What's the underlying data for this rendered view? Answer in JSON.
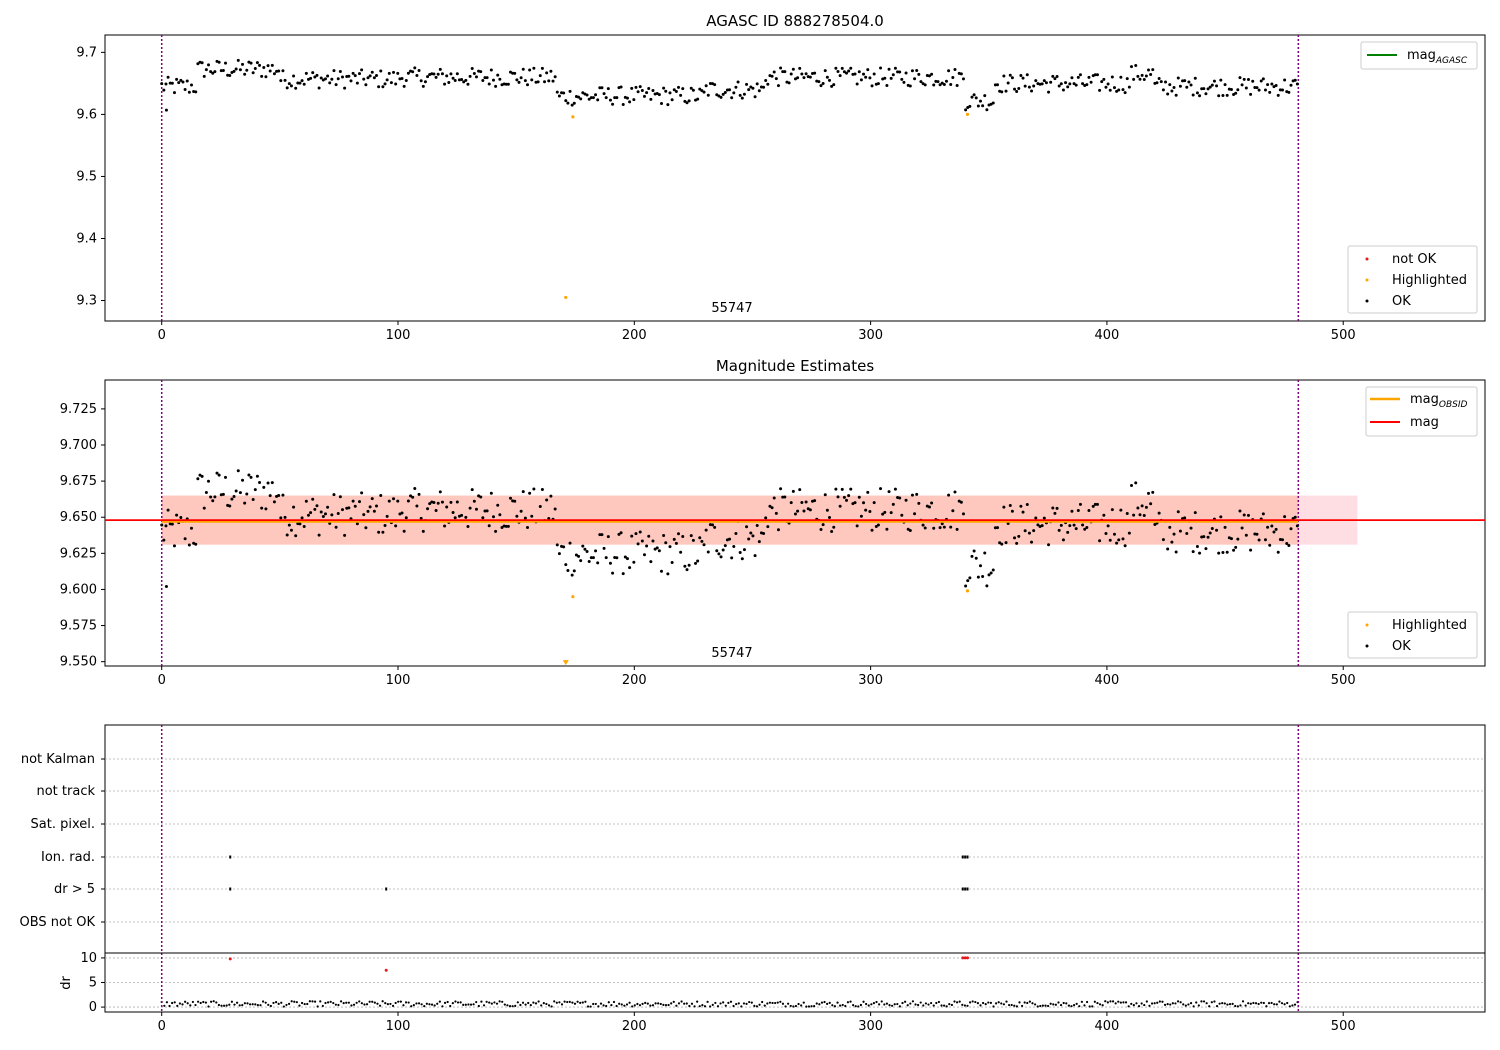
{
  "colors": {
    "ok": "#000000",
    "not_ok": "#e41a1c",
    "highlighted": "#ffa500",
    "agasc_line": "#008000",
    "mag_line": "#ff0000",
    "obsid_line": "#ffa500",
    "band_fill": "#ffb6c1",
    "band_obsid_fill": "#ffa07a",
    "obs_boundary": "#800080",
    "grid": "#b0b0b0"
  },
  "panel1": {
    "title": "AGASC ID 888278504.0",
    "obsid_label": "55747",
    "legend_top": {
      "mag_agasc": "mag",
      "mag_agasc_sub": "AGASC"
    },
    "legend_bottom": {
      "not_ok": "not OK",
      "highlighted": "Highlighted",
      "ok": "OK"
    }
  },
  "panel2": {
    "title": "Magnitude Estimates",
    "obsid_label": "55747",
    "legend_top": {
      "mag_obsid": "mag",
      "mag_obsid_sub": "OBSID",
      "mag": "mag"
    },
    "legend_bottom": {
      "highlighted": "Highlighted",
      "ok": "OK"
    }
  },
  "panel3": {
    "flag_labels": [
      "not Kalman",
      "not track",
      "Sat. pixel.",
      "Ion. rad.",
      "dr > 5",
      "OBS not OK"
    ],
    "dr_ylabel": "dr"
  },
  "chart_data": [
    {
      "type": "scatter",
      "title": "AGASC ID 888278504.0",
      "xlim": [
        -24,
        560
      ],
      "ylim": [
        9.267,
        9.728
      ],
      "xticks": [
        0,
        100,
        200,
        300,
        400,
        500
      ],
      "yticks": [
        9.3,
        9.4,
        9.5,
        9.6,
        9.7
      ],
      "obs_boundaries": [
        0,
        481
      ],
      "annotation": {
        "text": "55747",
        "x": 241
      },
      "series": [
        {
          "name": "OK",
          "profile": "main"
        },
        {
          "name": "Highlighted",
          "points": [
            [
              171,
              9.305
            ],
            [
              174,
              9.596
            ],
            [
              341,
              9.6
            ]
          ]
        },
        {
          "name": "not OK",
          "points": []
        }
      ],
      "lines": [
        {
          "name": "mag_AGASC"
        }
      ],
      "legend_top": "top-right",
      "legend_bottom": "bottom-right"
    },
    {
      "type": "scatter",
      "title": "Magnitude Estimates",
      "xlim": [
        -24,
        560
      ],
      "ylim": [
        9.547,
        9.745
      ],
      "xticks": [
        0,
        100,
        200,
        300,
        400,
        500
      ],
      "yticks": [
        9.55,
        9.575,
        9.6,
        9.625,
        9.65,
        9.675,
        9.7,
        9.725
      ],
      "obs_boundaries": [
        0,
        481
      ],
      "annotation": {
        "text": "55747",
        "x": 241
      },
      "mag": 9.648,
      "band": [
        9.631,
        9.665
      ],
      "band_xrange": [
        0,
        506
      ],
      "mag_obsid": 9.647,
      "series": [
        {
          "name": "OK",
          "profile": "main"
        },
        {
          "name": "Highlighted",
          "points": [
            [
              171,
              9.549
            ],
            [
              174,
              9.595
            ],
            [
              341,
              9.599
            ]
          ]
        }
      ],
      "legend_top": "top-right",
      "legend_bottom": "bottom-right"
    },
    {
      "type": "scatter",
      "xlim": [
        -24,
        560
      ],
      "xticks": [
        0,
        100,
        200,
        300,
        400,
        500
      ],
      "categories": [
        "not Kalman",
        "not track",
        "Sat. pixel.",
        "Ion. rad.",
        "dr > 5",
        "OBS not OK"
      ],
      "obs_boundaries": [
        0,
        481
      ],
      "flags": {
        "Ion. rad.": [
          29,
          339,
          340,
          341
        ],
        "dr > 5": [
          29,
          95,
          339,
          340,
          341
        ]
      },
      "dr": {
        "ylim": [
          -1,
          11
        ],
        "yticks": [
          0,
          5,
          10
        ],
        "ylabel": "dr",
        "outliers": [
          [
            29,
            9.8
          ],
          [
            95,
            7.5
          ],
          [
            339,
            10.0
          ],
          [
            340,
            10.0
          ],
          [
            341,
            10.0
          ]
        ],
        "baseline": [
          0.1,
          1.2
        ]
      }
    }
  ]
}
